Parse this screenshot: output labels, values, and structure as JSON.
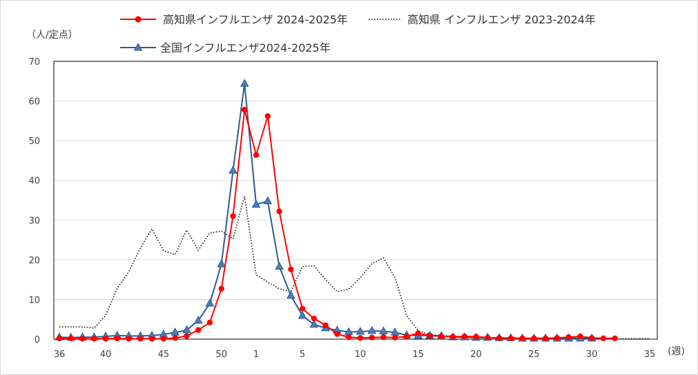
{
  "chart_data": {
    "type": "line",
    "y_unit_label": "（人/定点）",
    "x_unit_label": "(週)",
    "ylim": [
      0,
      70
    ],
    "y_ticks": [
      0,
      10,
      20,
      30,
      40,
      50,
      60,
      70
    ],
    "x_ticks": [
      {
        "index": 0,
        "label": "36"
      },
      {
        "index": 4,
        "label": "40"
      },
      {
        "index": 9,
        "label": "45"
      },
      {
        "index": 14,
        "label": "50"
      },
      {
        "index": 17,
        "label": "1"
      },
      {
        "index": 21,
        "label": "5"
      },
      {
        "index": 26,
        "label": "10"
      },
      {
        "index": 31,
        "label": "15"
      },
      {
        "index": 36,
        "label": "20"
      },
      {
        "index": 41,
        "label": "25"
      },
      {
        "index": 46,
        "label": "30"
      },
      {
        "index": 51,
        "label": "35"
      }
    ],
    "x_domain": [
      0,
      51
    ],
    "grid": "horizontal",
    "series": [
      {
        "name": "高知県インフルエンザ 2024-2025年",
        "color": "#ff0000",
        "marker": "circle",
        "dash": "solid",
        "values": [
          0.2,
          0.2,
          0.1,
          0.1,
          0.1,
          0.2,
          0.1,
          0.1,
          0.1,
          0.1,
          0.3,
          0.8,
          2.3,
          4.2,
          12.7,
          31.0,
          57.8,
          46.4,
          56.2,
          32.2,
          17.6,
          7.7,
          5.2,
          3.5,
          1.3,
          0.5,
          0.3,
          0.4,
          0.5,
          0.4,
          0.7,
          1.5,
          0.9,
          0.7,
          0.6,
          0.7,
          0.6,
          0.4,
          0.3,
          0.2,
          0.2,
          0.2,
          0.2,
          0.3,
          0.5,
          0.7,
          0.3,
          0.2,
          0.2
        ]
      },
      {
        "name": "高知県 インフルエンザ 2023-2024年",
        "color": "#000000",
        "marker": "none",
        "dash": "dotted",
        "values": [
          3.1,
          3.1,
          3.1,
          2.8,
          6.0,
          12.8,
          17.0,
          23.0,
          27.8,
          22.3,
          21.3,
          27.5,
          22.4,
          26.8,
          27.2,
          25.3,
          36.0,
          16.2,
          14.4,
          12.7,
          12.0,
          18.3,
          18.5,
          15.0,
          12.0,
          12.6,
          15.5,
          19.0,
          20.5,
          15.5,
          6.0,
          2.1,
          1.2,
          0.9,
          0.8,
          0.5,
          0.4,
          0.3,
          0.3,
          0.3,
          0.2,
          0.2,
          0.2,
          0.2,
          0.2,
          0.2,
          0.2,
          0.2,
          0.1,
          0.1,
          0.1,
          0.1
        ]
      },
      {
        "name": "全国インフルエンザ2024-2025年",
        "color": "#2e5a8e",
        "marker": "triangle",
        "marker_fill": "#4a7ebb",
        "dash": "solid",
        "values": [
          0.5,
          0.4,
          0.5,
          0.5,
          0.7,
          0.9,
          0.8,
          0.8,
          0.9,
          1.2,
          1.7,
          2.3,
          4.7,
          9.0,
          18.9,
          42.5,
          64.4,
          33.9,
          34.8,
          18.3,
          11.0,
          5.9,
          3.7,
          2.8,
          2.2,
          1.8,
          1.9,
          2.1,
          2.0,
          1.7,
          1.0,
          0.9,
          0.9,
          0.8,
          0.5,
          0.5,
          0.4,
          0.4,
          0.3,
          0.3,
          0.2,
          0.2,
          0.2,
          0.2,
          0.2,
          0.2,
          0.2
        ]
      }
    ]
  }
}
